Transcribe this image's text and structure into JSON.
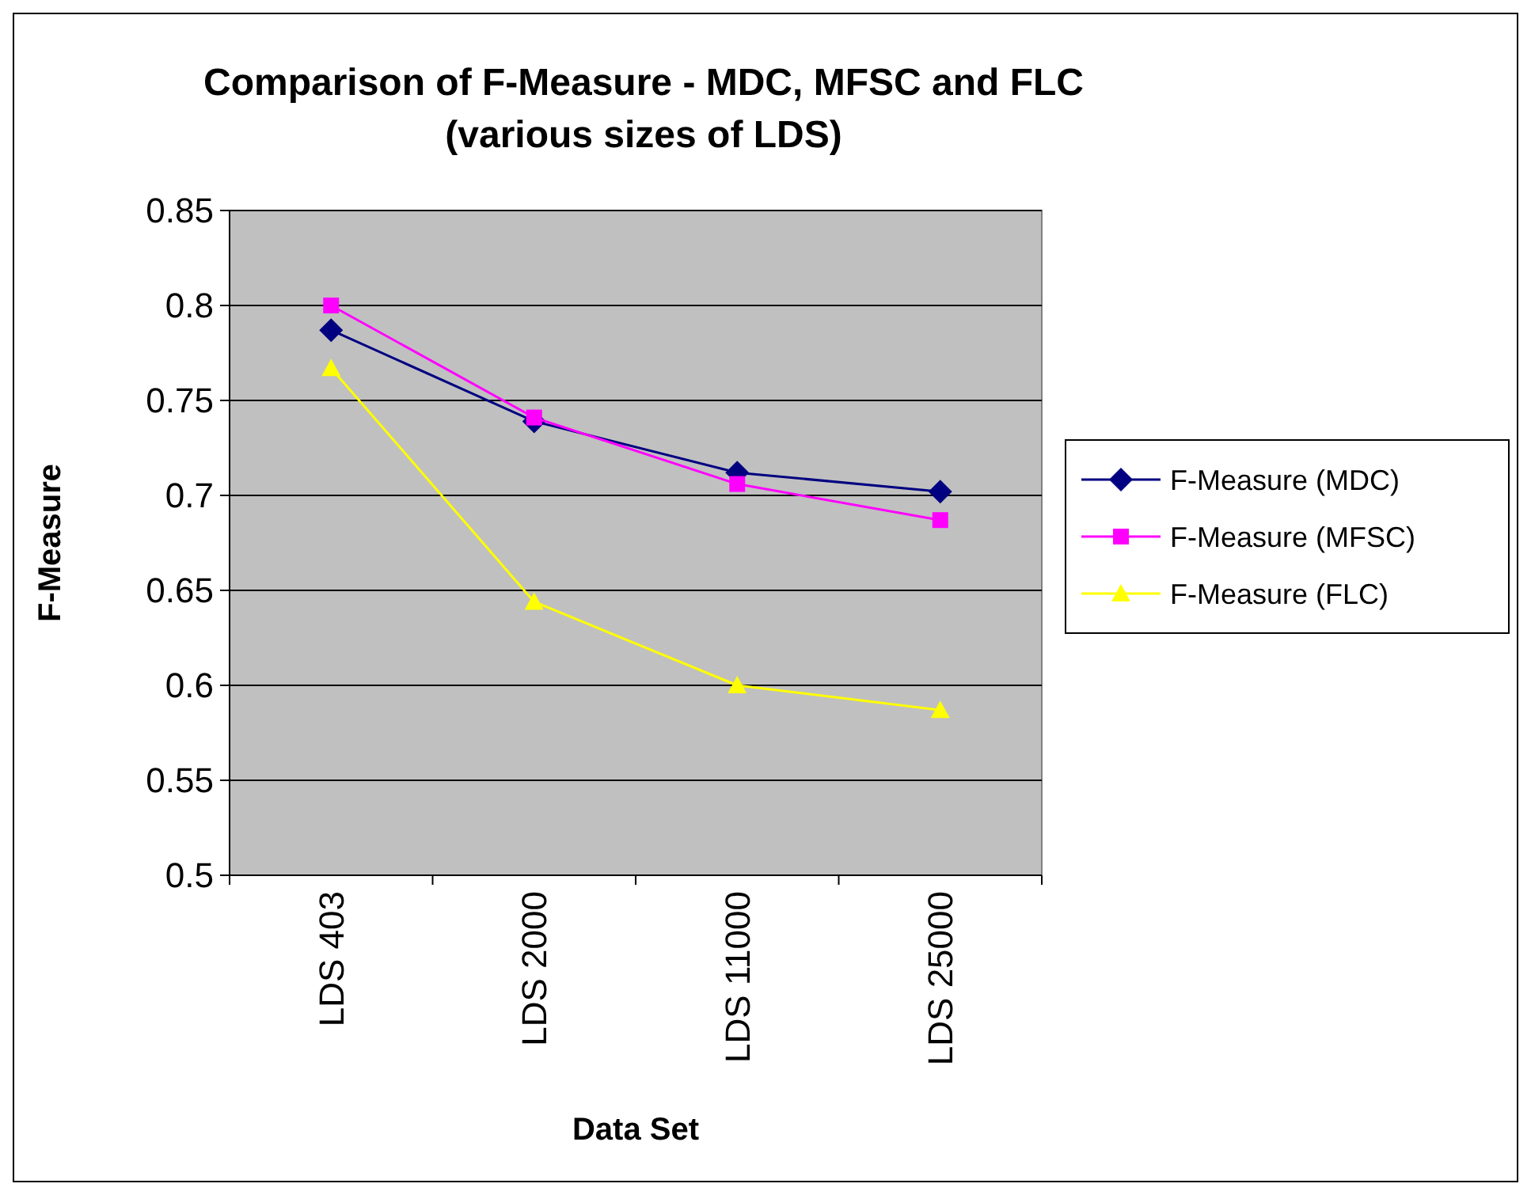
{
  "chart_data": {
    "type": "line",
    "title": "Comparison of F-Measure - MDC, MFSC and FLC\n(various sizes of LDS)",
    "xlabel": "Data Set",
    "ylabel": "F-Measure",
    "categories": [
      "LDS 403",
      "LDS 2000",
      "LDS 11000",
      "LDS 25000"
    ],
    "series": [
      {
        "name": "F-Measure (MDC)",
        "color": "#000080",
        "marker": "diamond",
        "values": [
          0.787,
          0.739,
          0.712,
          0.702
        ]
      },
      {
        "name": "F-Measure (MFSC)",
        "color": "#ff00ff",
        "marker": "square",
        "values": [
          0.8,
          0.741,
          0.706,
          0.687
        ]
      },
      {
        "name": "F-Measure (FLC)",
        "color": "#ffff00",
        "marker": "triangle",
        "values": [
          0.767,
          0.644,
          0.6,
          0.587
        ]
      }
    ],
    "ylim": [
      0.5,
      0.85
    ],
    "yticks": [
      0.5,
      0.55,
      0.6,
      0.65,
      0.7,
      0.75,
      0.8,
      0.85
    ],
    "grid": "y",
    "legend": "right",
    "line_style": "solid"
  }
}
